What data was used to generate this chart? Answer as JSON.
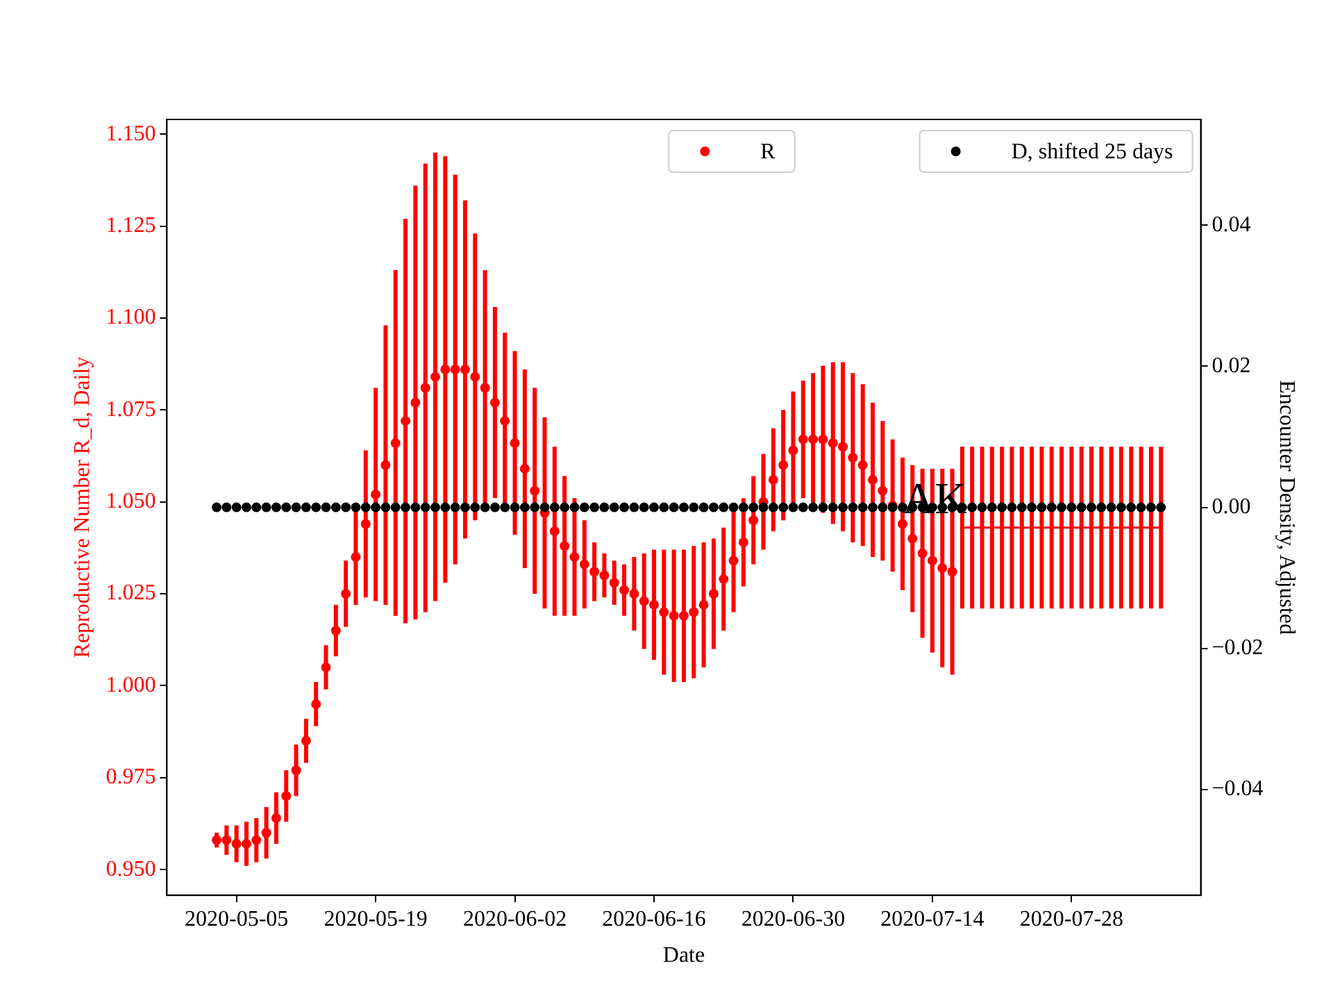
{
  "chart_data": {
    "type": "scatter",
    "xlabel": "Date",
    "ylabel": "Reproductive Number R_d, Daily",
    "y2label": "Encounter Density, Adjusted",
    "x": [
      "2020-05-03",
      "2020-05-04",
      "2020-05-05",
      "2020-05-06",
      "2020-05-07",
      "2020-05-08",
      "2020-05-09",
      "2020-05-10",
      "2020-05-11",
      "2020-05-12",
      "2020-05-13",
      "2020-05-14",
      "2020-05-15",
      "2020-05-16",
      "2020-05-17",
      "2020-05-18",
      "2020-05-19",
      "2020-05-20",
      "2020-05-21",
      "2020-05-22",
      "2020-05-23",
      "2020-05-24",
      "2020-05-25",
      "2020-05-26",
      "2020-05-27",
      "2020-05-28",
      "2020-05-29",
      "2020-05-30",
      "2020-05-31",
      "2020-06-01",
      "2020-06-02",
      "2020-06-03",
      "2020-06-04",
      "2020-06-05",
      "2020-06-06",
      "2020-06-07",
      "2020-06-08",
      "2020-06-09",
      "2020-06-10",
      "2020-06-11",
      "2020-06-12",
      "2020-06-13",
      "2020-06-14",
      "2020-06-15",
      "2020-06-16",
      "2020-06-17",
      "2020-06-18",
      "2020-06-19",
      "2020-06-20",
      "2020-06-21",
      "2020-06-22",
      "2020-06-23",
      "2020-06-24",
      "2020-06-25",
      "2020-06-26",
      "2020-06-27",
      "2020-06-28",
      "2020-06-29",
      "2020-06-30",
      "2020-07-01",
      "2020-07-02",
      "2020-07-03",
      "2020-07-04",
      "2020-07-05",
      "2020-07-06",
      "2020-07-07",
      "2020-07-08",
      "2020-07-09",
      "2020-07-10",
      "2020-07-11",
      "2020-07-12",
      "2020-07-13",
      "2020-07-14",
      "2020-07-15",
      "2020-07-16",
      "2020-07-17",
      "2020-07-18",
      "2020-07-19",
      "2020-07-20",
      "2020-07-21",
      "2020-07-22",
      "2020-07-23",
      "2020-07-24",
      "2020-07-25",
      "2020-07-26",
      "2020-07-27",
      "2020-07-28",
      "2020-07-29",
      "2020-07-30",
      "2020-07-31",
      "2020-08-01",
      "2020-08-02",
      "2020-08-03",
      "2020-08-04",
      "2020-08-05",
      "2020-08-06"
    ],
    "series": [
      {
        "name": "R",
        "color": "#ff0000",
        "marker": "circle",
        "x": [
          "2020-05-03",
          "2020-05-04",
          "2020-05-05",
          "2020-05-06",
          "2020-05-07",
          "2020-05-08",
          "2020-05-09",
          "2020-05-10",
          "2020-05-11",
          "2020-05-12",
          "2020-05-13",
          "2020-05-14",
          "2020-05-15",
          "2020-05-16",
          "2020-05-17",
          "2020-05-18",
          "2020-05-19",
          "2020-05-20",
          "2020-05-21",
          "2020-05-22",
          "2020-05-23",
          "2020-05-24",
          "2020-05-25",
          "2020-05-26",
          "2020-05-27",
          "2020-05-28",
          "2020-05-29",
          "2020-05-30",
          "2020-05-31",
          "2020-06-01",
          "2020-06-02",
          "2020-06-03",
          "2020-06-04",
          "2020-06-05",
          "2020-06-06",
          "2020-06-07",
          "2020-06-08",
          "2020-06-09",
          "2020-06-10",
          "2020-06-11",
          "2020-06-12",
          "2020-06-13",
          "2020-06-14",
          "2020-06-15",
          "2020-06-16",
          "2020-06-17",
          "2020-06-18",
          "2020-06-19",
          "2020-06-20",
          "2020-06-21",
          "2020-06-22",
          "2020-06-23",
          "2020-06-24",
          "2020-06-25",
          "2020-06-26",
          "2020-06-27",
          "2020-06-28",
          "2020-06-29",
          "2020-06-30",
          "2020-07-01",
          "2020-07-02",
          "2020-07-03",
          "2020-07-04",
          "2020-07-05",
          "2020-07-06",
          "2020-07-07",
          "2020-07-08",
          "2020-07-09",
          "2020-07-10",
          "2020-07-11",
          "2020-07-12",
          "2020-07-13",
          "2020-07-14",
          "2020-07-15",
          "2020-07-16"
        ],
        "values": [
          0.958,
          0.958,
          0.957,
          0.957,
          0.958,
          0.96,
          0.964,
          0.97,
          0.977,
          0.985,
          0.995,
          1.005,
          1.015,
          1.025,
          1.035,
          1.044,
          1.052,
          1.06,
          1.066,
          1.072,
          1.077,
          1.081,
          1.084,
          1.086,
          1.086,
          1.086,
          1.084,
          1.081,
          1.077,
          1.072,
          1.066,
          1.059,
          1.053,
          1.047,
          1.042,
          1.038,
          1.035,
          1.033,
          1.031,
          1.03,
          1.028,
          1.026,
          1.025,
          1.023,
          1.022,
          1.02,
          1.019,
          1.019,
          1.02,
          1.022,
          1.025,
          1.029,
          1.034,
          1.039,
          1.045,
          1.05,
          1.056,
          1.06,
          1.064,
          1.067,
          1.067,
          1.067,
          1.066,
          1.065,
          1.062,
          1.06,
          1.056,
          1.053,
          1.049,
          1.044,
          1.04,
          1.036,
          1.034,
          1.032,
          1.031
        ],
        "errors": [
          0.002,
          0.004,
          0.005,
          0.006,
          0.006,
          0.007,
          0.007,
          0.007,
          0.007,
          0.006,
          0.006,
          0.006,
          0.007,
          0.009,
          0.013,
          0.02,
          0.029,
          0.038,
          0.047,
          0.055,
          0.059,
          0.061,
          0.061,
          0.058,
          0.053,
          0.046,
          0.039,
          0.032,
          0.026,
          0.024,
          0.025,
          0.027,
          0.028,
          0.026,
          0.023,
          0.019,
          0.016,
          0.012,
          0.008,
          0.006,
          0.006,
          0.007,
          0.01,
          0.013,
          0.015,
          0.017,
          0.018,
          0.018,
          0.018,
          0.017,
          0.015,
          0.014,
          0.014,
          0.012,
          0.012,
          0.013,
          0.014,
          0.015,
          0.016,
          0.016,
          0.018,
          0.02,
          0.022,
          0.023,
          0.023,
          0.022,
          0.021,
          0.019,
          0.018,
          0.018,
          0.02,
          0.023,
          0.025,
          0.027,
          0.028
        ]
      },
      {
        "type": "line",
        "color": "#ff0000",
        "marker": "none",
        "x": [
          "2020-07-17",
          "2020-07-18",
          "2020-07-19",
          "2020-07-20",
          "2020-07-21",
          "2020-07-22",
          "2020-07-23",
          "2020-07-24",
          "2020-07-25",
          "2020-07-26",
          "2020-07-27",
          "2020-07-28",
          "2020-07-29",
          "2020-07-30",
          "2020-07-31",
          "2020-08-01",
          "2020-08-02",
          "2020-08-03",
          "2020-08-04",
          "2020-08-05",
          "2020-08-06"
        ],
        "values": [
          1.043,
          1.043,
          1.043,
          1.043,
          1.043,
          1.043,
          1.043,
          1.043,
          1.043,
          1.043,
          1.043,
          1.043,
          1.043,
          1.043,
          1.043,
          1.043,
          1.043,
          1.043,
          1.043,
          1.043,
          1.043
        ],
        "errors": [
          0.022,
          0.022,
          0.022,
          0.022,
          0.022,
          0.022,
          0.022,
          0.022,
          0.022,
          0.022,
          0.022,
          0.022,
          0.022,
          0.022,
          0.022,
          0.022,
          0.022,
          0.022,
          0.022,
          0.022,
          0.022
        ]
      },
      {
        "name": "D, shifted 25 days",
        "color": "#000000",
        "axis": "y2",
        "marker": "circle",
        "values": [
          0,
          0,
          0,
          0,
          0,
          0,
          0,
          0,
          0,
          0,
          0,
          0,
          0,
          0,
          0,
          0,
          0,
          0,
          0,
          0,
          0,
          0,
          0,
          0,
          0,
          0,
          0,
          0,
          0,
          0,
          0,
          0,
          0,
          0,
          0,
          0,
          0,
          0,
          0,
          0,
          0,
          0,
          0,
          0,
          0,
          0,
          0,
          0,
          0,
          0,
          0,
          0,
          0,
          0,
          0,
          0,
          0,
          0,
          0,
          0,
          0,
          0,
          0,
          0,
          0,
          0,
          0,
          0,
          0,
          0,
          0,
          0,
          0,
          0,
          0,
          0,
          0,
          0,
          0,
          0,
          0,
          0,
          0,
          0,
          0,
          0,
          0,
          0,
          0,
          0,
          0,
          0,
          0,
          0,
          0,
          0
        ]
      }
    ],
    "xlim": [
      "2020-04-28",
      "2020-08-10"
    ],
    "xticks": [
      "2020-05-05",
      "2020-05-19",
      "2020-06-02",
      "2020-06-16",
      "2020-06-30",
      "2020-07-14",
      "2020-07-28"
    ],
    "ylim": [
      0.943,
      1.154
    ],
    "yticks": [
      {
        "value": 0.95,
        "label": "0.950"
      },
      {
        "value": 0.975,
        "label": "0.975"
      },
      {
        "value": 1.0,
        "label": "1.000"
      },
      {
        "value": 1.025,
        "label": "1.025"
      },
      {
        "value": 1.05,
        "label": "1.050"
      },
      {
        "value": 1.075,
        "label": "1.075"
      },
      {
        "value": 1.1,
        "label": "1.100"
      },
      {
        "value": 1.125,
        "label": "1.125"
      },
      {
        "value": 1.15,
        "label": "1.150"
      }
    ],
    "y2lim": [
      -0.055,
      0.055
    ],
    "y2ticks": [
      {
        "value": -0.04,
        "label": "−0.04"
      },
      {
        "value": -0.02,
        "label": "−0.02"
      },
      {
        "value": 0,
        "label": "0.00"
      },
      {
        "value": 0.02,
        "label": "0.02"
      },
      {
        "value": 0.04,
        "label": "0.04"
      }
    ],
    "annotations": [
      {
        "text": "AK",
        "x": "2020-07-11",
        "y": 1.047
      }
    ],
    "legend": "top right"
  }
}
